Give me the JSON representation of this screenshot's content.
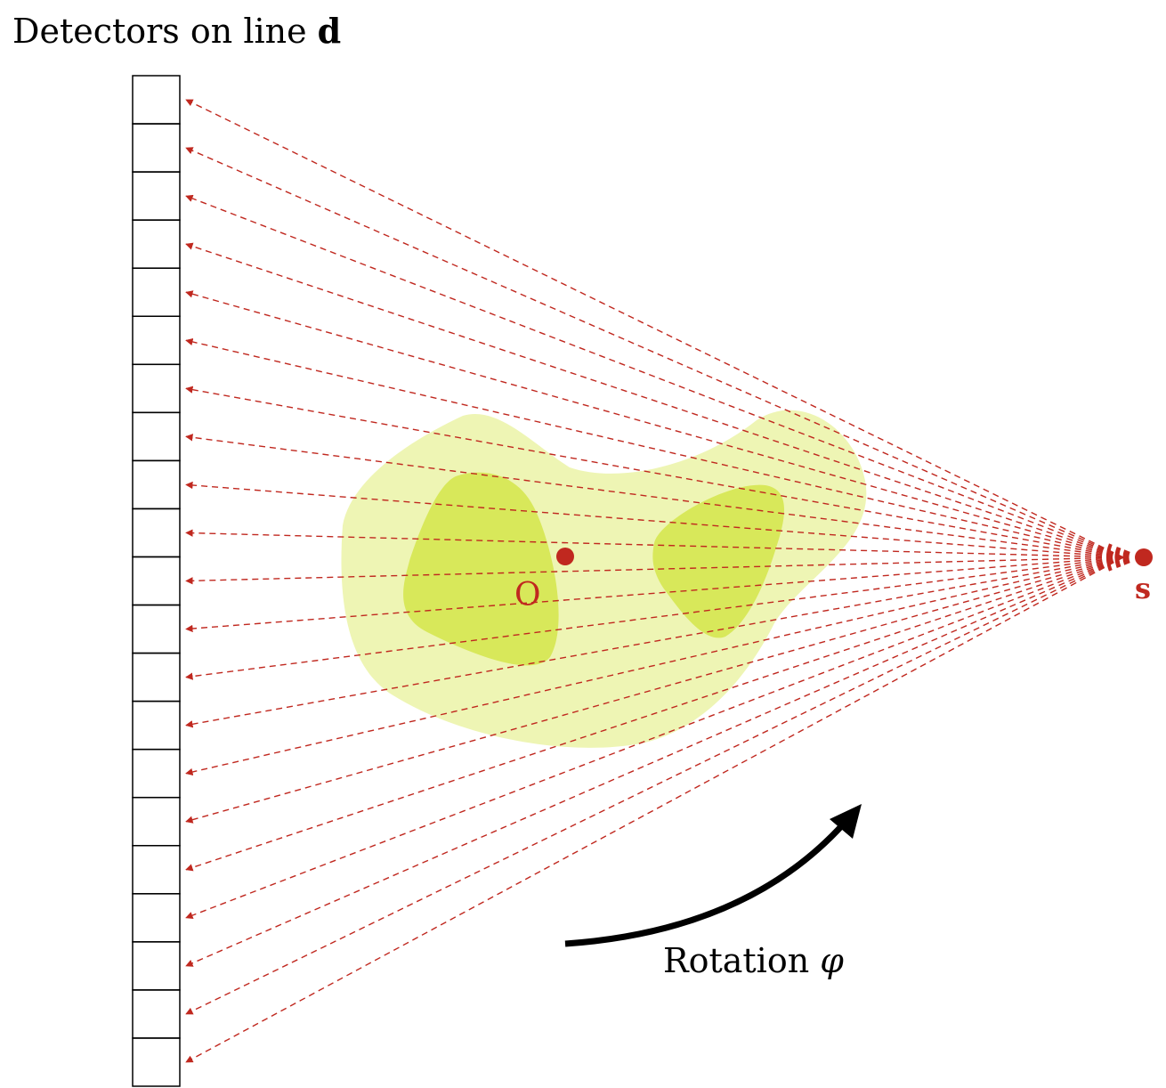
{
  "title": {
    "prefix": "Detectors on line ",
    "bold": "d"
  },
  "labels": {
    "center": "O",
    "source": "s",
    "rotation_prefix": "Rotation ",
    "rotation_symbol": "φ"
  },
  "detectors": {
    "count": 21
  },
  "rays": {
    "count": 21
  },
  "colors": {
    "ray": "#c0281f",
    "source": "#c0281f",
    "object_outer": "#eef5b4",
    "object_inner": "#d8e85a",
    "detector_stroke": "#000000",
    "rotation_arrow": "#000000"
  }
}
